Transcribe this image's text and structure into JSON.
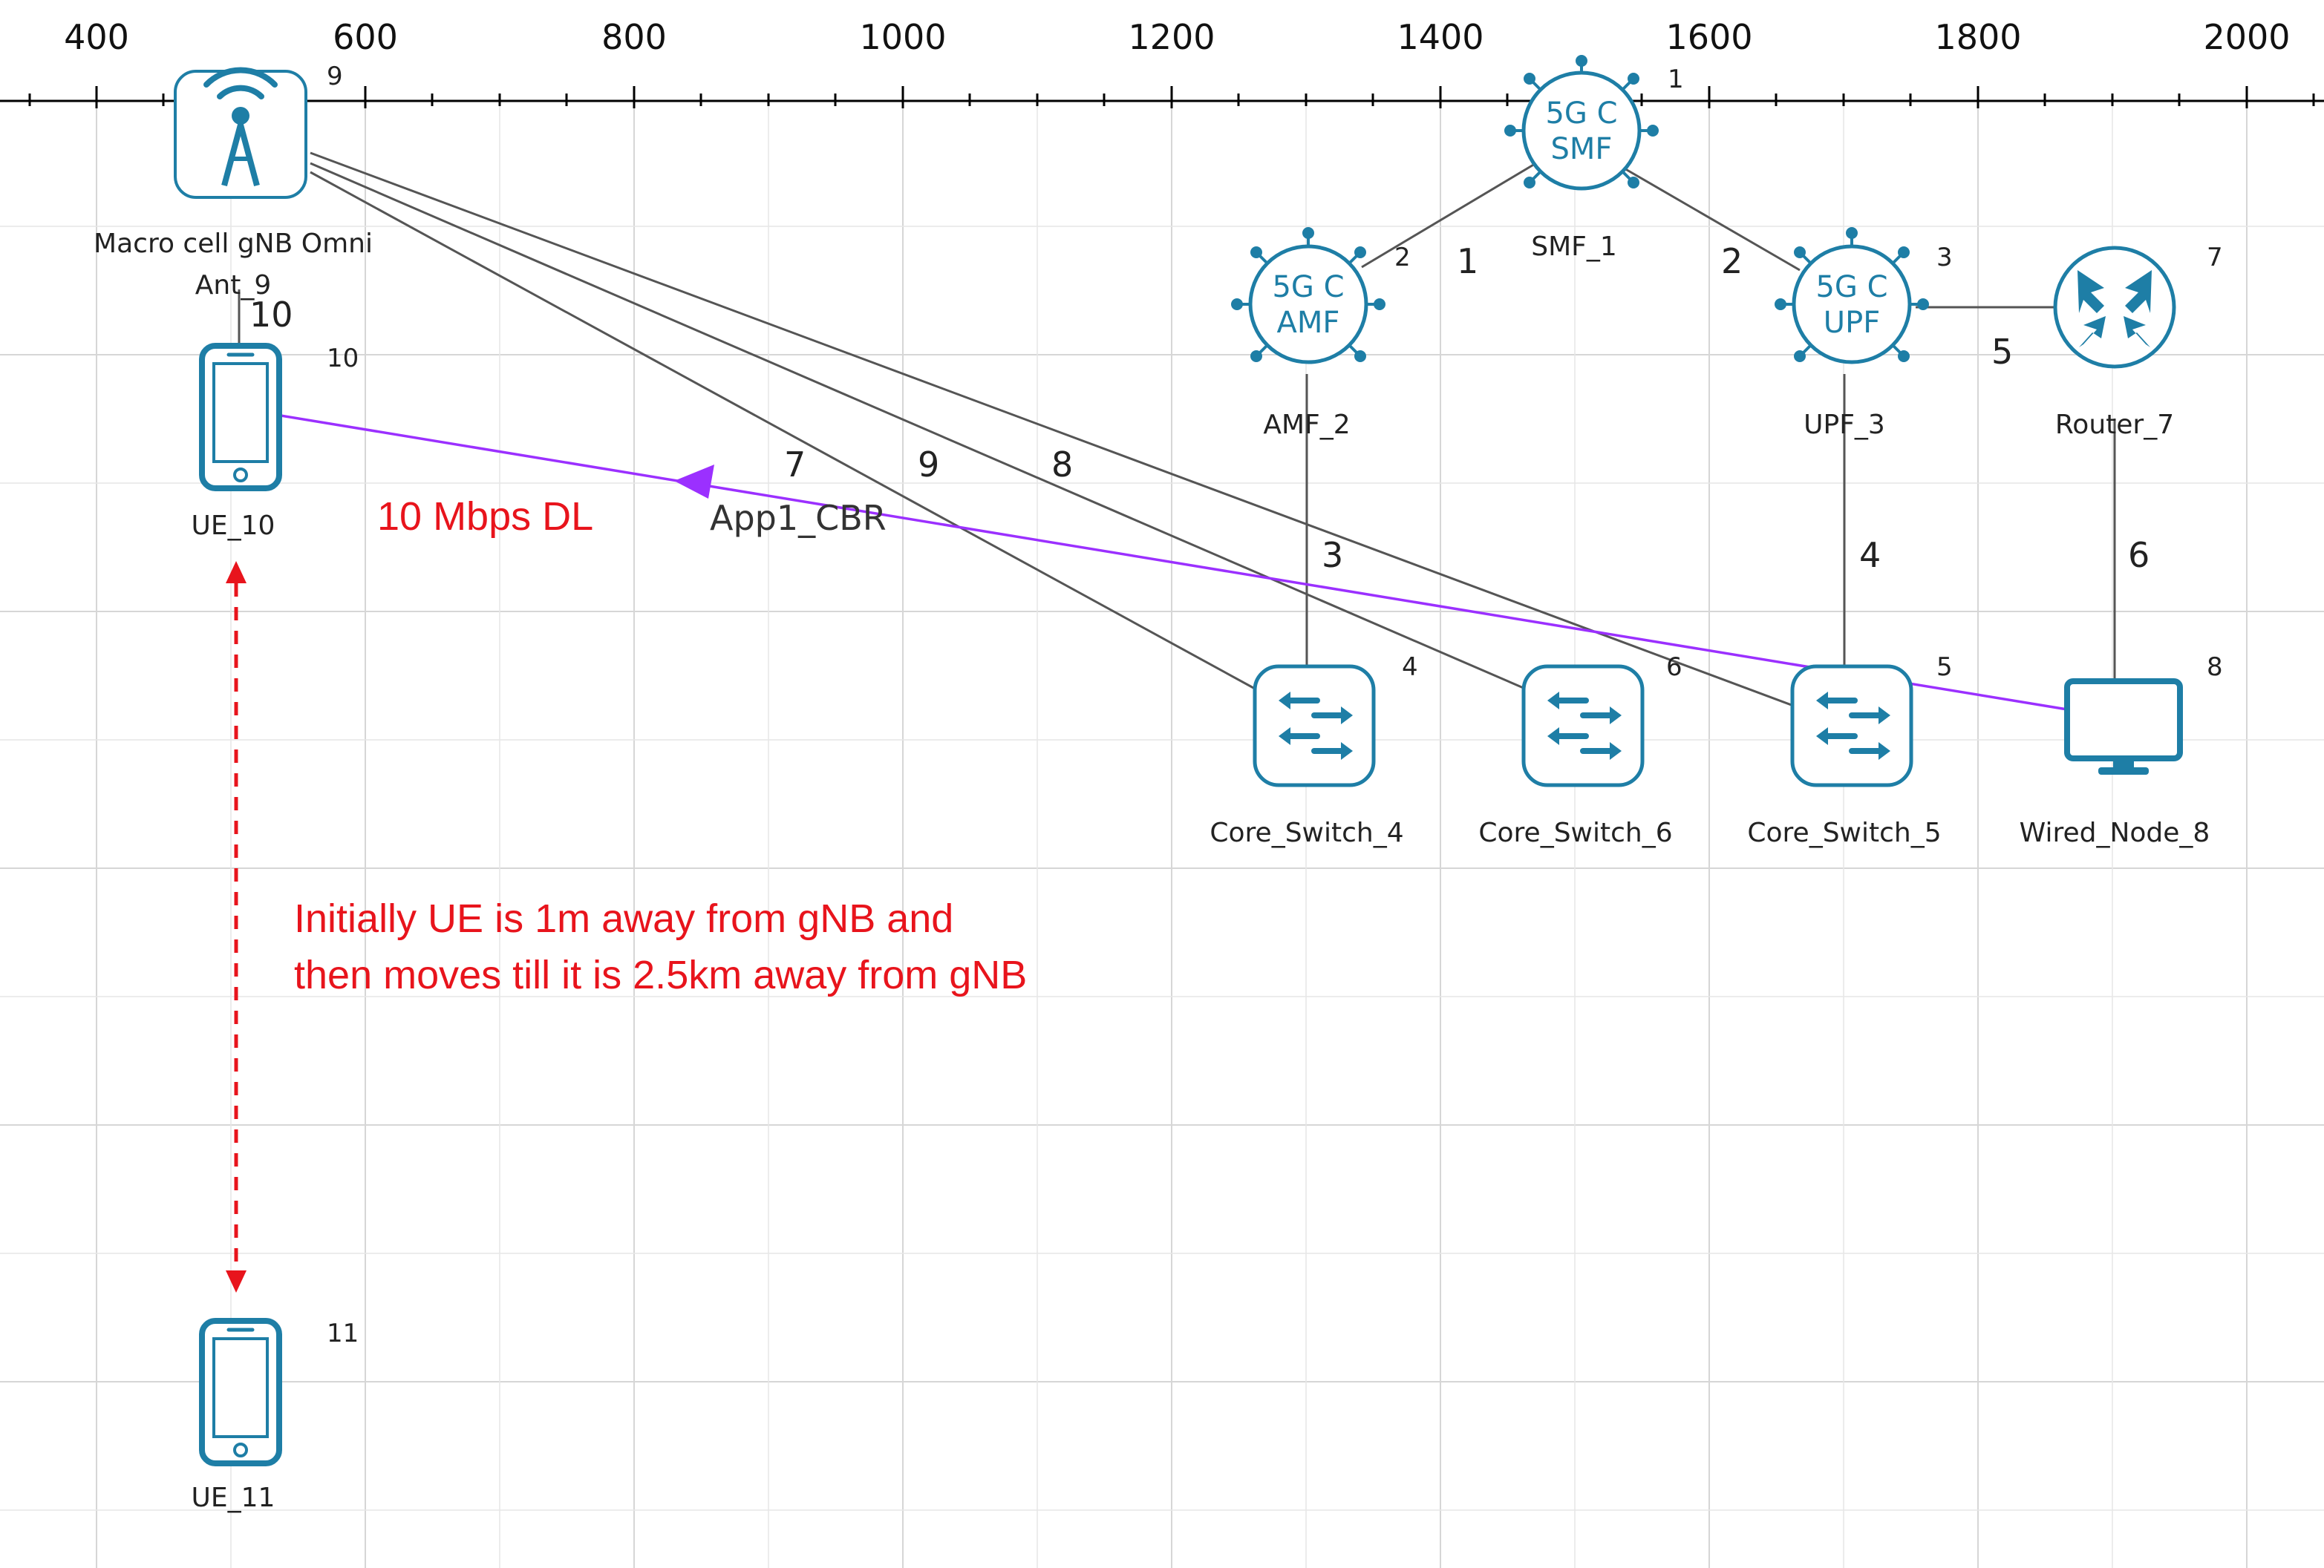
{
  "ruler": {
    "labels": [
      "400",
      "600",
      "800",
      "1000",
      "1200",
      "1400",
      "1600",
      "1800",
      "2000"
    ]
  },
  "nodes": {
    "gnb": {
      "label_line1": "Macro cell gNB Omni",
      "label_line2": "Ant_9",
      "id": "9"
    },
    "smf": {
      "label": "SMF_1",
      "id": "1",
      "icon_line1": "5G C",
      "icon_line2": "SMF"
    },
    "amf": {
      "label": "AMF_2",
      "id": "2",
      "icon_line1": "5G C",
      "icon_line2": "AMF"
    },
    "upf": {
      "label": "UPF_3",
      "id": "3",
      "icon_line1": "5G C",
      "icon_line2": "UPF"
    },
    "router": {
      "label": "Router_7",
      "id": "7"
    },
    "switch4": {
      "label": "Core_Switch_4",
      "id": "4"
    },
    "switch6": {
      "label": "Core_Switch_6",
      "id": "6"
    },
    "switch5": {
      "label": "Core_Switch_5",
      "id": "5"
    },
    "wired": {
      "label": "Wired_Node_8",
      "id": "8"
    },
    "ue10": {
      "label": "UE_10",
      "id": "10"
    },
    "ue11": {
      "label": "UE_11",
      "id": "11"
    }
  },
  "link_labels": {
    "smf_amf": "1",
    "smf_upf": "2",
    "amf_switch4": "3",
    "upf_switch5": "4",
    "upf_router": "5",
    "router_wired": "6",
    "gnb_switch4": "7",
    "gnb_switch5": "8",
    "gnb_switch6": "9",
    "gnb_ue10": "10"
  },
  "application": {
    "name": "App1_CBR",
    "rate": "10 Mbps DL",
    "color": "#9b30ff"
  },
  "annotation": {
    "line1": "Initially UE is 1m away from gNB and",
    "line2": "then moves till it is 2.5km away from gNB",
    "color": "#e8141c"
  },
  "colors": {
    "icon": "#1e7ea6",
    "icon_fill": "#ffffff",
    "grid": "#d6d6d6"
  }
}
